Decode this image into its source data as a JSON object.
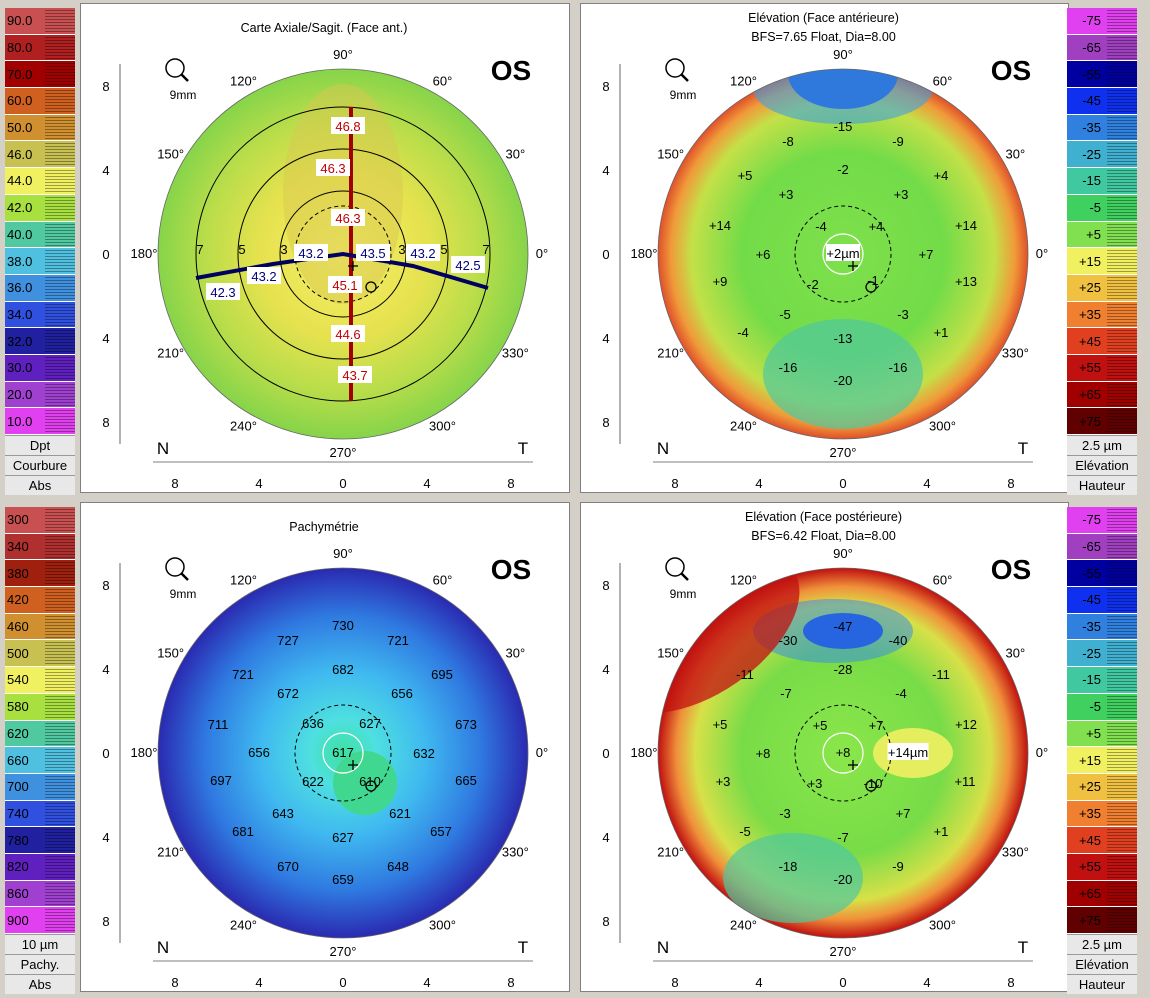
{
  "quads": [
    {
      "title": "Carte Axiale/Sagit. (Face ant.)",
      "subtitle": "",
      "eye": "OS",
      "zoom": "9mm",
      "legend_side": "left",
      "legend_values": [
        "90.0",
        "80.0",
        "70.0",
        "60.0",
        "50.0",
        "46.0",
        "44.0",
        "42.0",
        "40.0",
        "38.0",
        "36.0",
        "34.0",
        "32.0",
        "30.0",
        "20.0",
        "10.0"
      ],
      "legend_colors": [
        "#c85050",
        "#b02020",
        "#a00000",
        "#d06020",
        "#d09030",
        "#c8c050",
        "#f0f060",
        "#a8e040",
        "#50c8a0",
        "#50c0e0",
        "#4090e0",
        "#3050e0",
        "#2020a0",
        "#6020c0",
        "#a040d0",
        "#e040f0"
      ],
      "legend_caption": [
        "Dpt",
        "Courbure",
        "Abs"
      ],
      "ring_labels": [
        "3",
        "5",
        "7"
      ],
      "values": [
        {
          "t": "46.8",
          "c": "#c00000"
        },
        {
          "t": "46.3",
          "c": "#c00000"
        },
        {
          "t": "46.3",
          "c": "#c00000"
        },
        {
          "t": "45.1",
          "c": "#c00000"
        },
        {
          "t": "44.6",
          "c": "#c00000"
        },
        {
          "t": "43.7",
          "c": "#c00000"
        },
        {
          "t": "43.2",
          "c": "#000080"
        },
        {
          "t": "43.5",
          "c": "#000080"
        },
        {
          "t": "43.2",
          "c": "#000080"
        },
        {
          "t": "42.5",
          "c": "#000080"
        },
        {
          "t": "43.2",
          "c": "#000080"
        },
        {
          "t": "42.3",
          "c": "#000080"
        }
      ]
    },
    {
      "title": "Elévation (Face antérieure)",
      "subtitle": "BFS=7.65 Float, Dia=8.00",
      "eye": "OS",
      "zoom": "9mm",
      "legend_side": "right",
      "legend_values": [
        "-75",
        "-65",
        "-55",
        "-45",
        "-35",
        "-25",
        "-15",
        "-5",
        "+5",
        "+15",
        "+25",
        "+35",
        "+45",
        "+55",
        "+65",
        "+75"
      ],
      "legend_colors": [
        "#e040f0",
        "#a040c0",
        "#0000a0",
        "#1030f0",
        "#3080e0",
        "#40b0d0",
        "#40c8a0",
        "#40d060",
        "#80e050",
        "#f0f060",
        "#f0c040",
        "#f08030",
        "#e04020",
        "#c01010",
        "#a00000",
        "#600000"
      ],
      "legend_caption": [
        "2.5 µm",
        "Elévation",
        "Hauteur"
      ],
      "values": [
        "-15",
        "-8",
        "-9",
        "-2",
        "+5",
        "+3",
        "+3",
        "+4",
        "+14",
        "-4",
        "+4",
        "+14",
        "+6",
        "+2µm",
        "+7",
        "+9",
        "-2",
        "-1",
        "+13",
        "-5",
        "-3",
        "-4",
        "-13",
        "+1",
        "-16",
        "-16",
        "-20"
      ]
    },
    {
      "title": "Pachymétrie",
      "subtitle": "",
      "eye": "OS",
      "zoom": "9mm",
      "legend_side": "left",
      "legend_values": [
        "300",
        "340",
        "380",
        "420",
        "460",
        "500",
        "540",
        "580",
        "620",
        "660",
        "700",
        "740",
        "780",
        "820",
        "860",
        "900"
      ],
      "legend_colors": [
        "#c85050",
        "#b03030",
        "#a02010",
        "#d06020",
        "#d09030",
        "#c8c050",
        "#f0f060",
        "#a8e040",
        "#50c8a0",
        "#50c0e0",
        "#4090e0",
        "#3050e0",
        "#2020a0",
        "#6020c0",
        "#a040d0",
        "#e040f0"
      ],
      "legend_caption": [
        "10 µm",
        "Pachy.",
        "Abs"
      ],
      "values": [
        "730",
        "727",
        "721",
        "721",
        "682",
        "695",
        "672",
        "656",
        "711",
        "636",
        "627",
        "673",
        "656",
        "617",
        "632",
        "697",
        "622",
        "610",
        "665",
        "643",
        "621",
        "681",
        "627",
        "657",
        "670",
        "648",
        "659"
      ]
    },
    {
      "title": "Elévation (Face postérieure)",
      "subtitle": "BFS=6.42 Float, Dia=8.00",
      "eye": "OS",
      "zoom": "9mm",
      "legend_side": "right",
      "legend_values": [
        "-75",
        "-65",
        "-55",
        "-45",
        "-35",
        "-25",
        "-15",
        "-5",
        "+5",
        "+15",
        "+25",
        "+35",
        "+45",
        "+55",
        "+65",
        "+75"
      ],
      "legend_colors": [
        "#e040f0",
        "#a040c0",
        "#0000a0",
        "#1030f0",
        "#3080e0",
        "#40b0d0",
        "#40c8a0",
        "#40d060",
        "#80e050",
        "#f0f060",
        "#f0c040",
        "#f08030",
        "#e04020",
        "#c01010",
        "#a00000",
        "#600000"
      ],
      "legend_caption": [
        "2.5 µm",
        "Elévation",
        "Hauteur"
      ],
      "values": [
        "-47",
        "-30",
        "-40",
        "-28",
        "-11",
        "-11",
        "-7",
        "-4",
        "+5",
        "+5",
        "+7",
        "+12",
        "+8",
        "+8",
        "+14µm",
        "+3",
        "+3",
        "-10",
        "+11",
        "-3",
        "+7",
        "-5",
        "-7",
        "+1",
        "-18",
        "-9",
        "-20"
      ]
    }
  ],
  "axes": {
    "angle_labels": [
      "90°",
      "60°",
      "30°",
      "0°",
      "330°",
      "300°",
      "270°",
      "240°",
      "210°",
      "180°",
      "150°",
      "120°"
    ],
    "y_ticks": [
      "8",
      "4",
      "0",
      "4",
      "8"
    ],
    "x_ticks": [
      "8",
      "4",
      "0",
      "4",
      "8"
    ],
    "nasal": "N",
    "temporal": "T"
  }
}
